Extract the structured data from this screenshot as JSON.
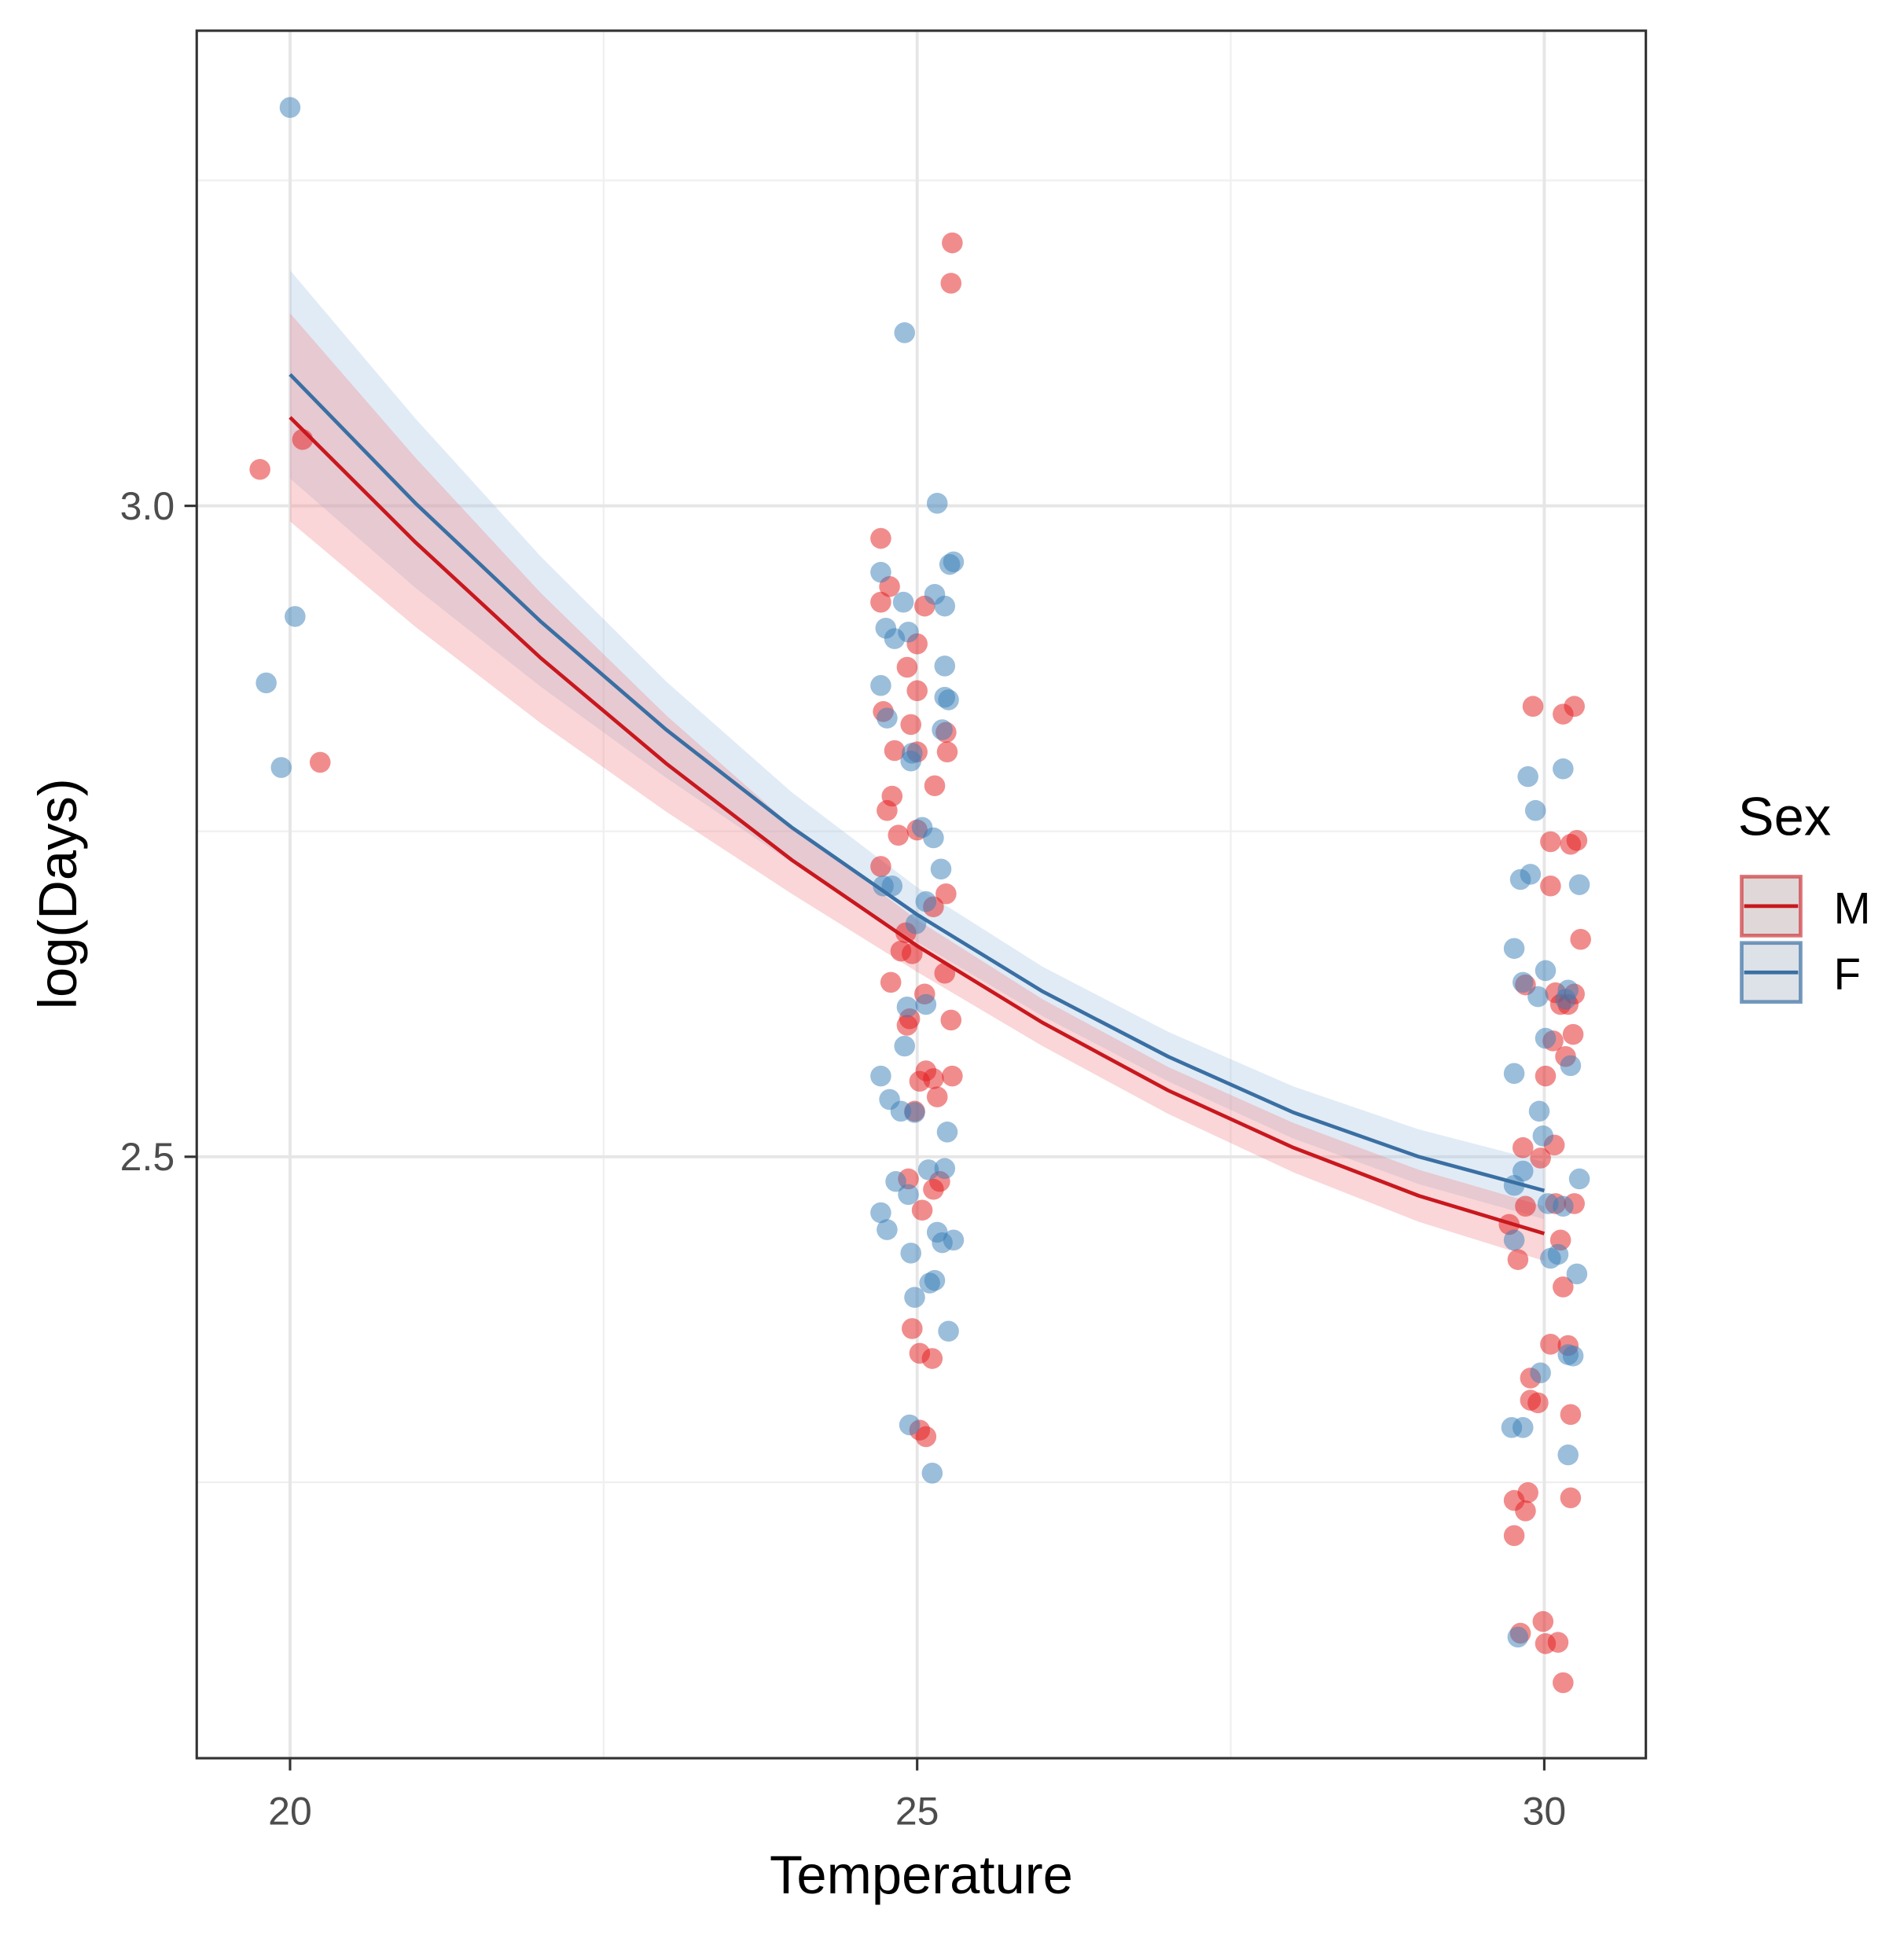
{
  "chart_data": {
    "type": "scatter",
    "title": "",
    "xlabel": "Temperature",
    "ylabel": "log(Days)",
    "xlim": [
      19.256,
      30.81
    ],
    "ylim": [
      2.038,
      3.365
    ],
    "x_ticks": [
      20,
      25,
      30
    ],
    "x_tick_labels": [
      "20",
      "25",
      "30"
    ],
    "y_ticks": [
      2.5,
      3.0
    ],
    "y_tick_labels": [
      "2.5",
      "3.0"
    ],
    "x_minor_grid": [
      22.5,
      27.5
    ],
    "y_minor_grid": [
      2.25,
      2.75,
      3.25
    ],
    "grid": true,
    "legend": {
      "title": "Sex",
      "placement": "right",
      "entries": [
        "M",
        "F"
      ]
    },
    "series": [
      {
        "name": "M",
        "color": "#e41a1c",
        "line_color": "#c8181e",
        "band_color": "#f08a8e",
        "fit": {
          "x": [
            20,
            21,
            22,
            23,
            24,
            25,
            26,
            27,
            28,
            29,
            30
          ],
          "y": [
            3.068,
            2.972,
            2.883,
            2.802,
            2.728,
            2.662,
            2.603,
            2.551,
            2.507,
            2.47,
            2.441
          ],
          "ci_halfwidth": [
            0.08,
            0.065,
            0.05,
            0.037,
            0.026,
            0.02,
            0.018,
            0.018,
            0.019,
            0.02,
            0.021
          ]
        },
        "points": [
          [
            19.76,
            3.028
          ],
          [
            20.1,
            3.051
          ],
          [
            20.24,
            2.803
          ],
          [
            25.28,
            3.202
          ],
          [
            25.27,
            3.171
          ],
          [
            24.71,
            2.975
          ],
          [
            24.71,
            2.926
          ],
          [
            24.78,
            2.938
          ],
          [
            25.06,
            2.923
          ],
          [
            25.0,
            2.894
          ],
          [
            24.92,
            2.876
          ],
          [
            25.0,
            2.858
          ],
          [
            24.95,
            2.832
          ],
          [
            24.73,
            2.842
          ],
          [
            25.0,
            2.811
          ],
          [
            25.23,
            2.826
          ],
          [
            25.24,
            2.811
          ],
          [
            24.82,
            2.812
          ],
          [
            24.8,
            2.777
          ],
          [
            24.76,
            2.766
          ],
          [
            24.85,
            2.747
          ],
          [
            25.0,
            2.751
          ],
          [
            25.14,
            2.785
          ],
          [
            25.23,
            2.702
          ],
          [
            24.71,
            2.723
          ],
          [
            25.13,
            2.692
          ],
          [
            24.91,
            2.672
          ],
          [
            24.87,
            2.658
          ],
          [
            24.96,
            2.656
          ],
          [
            25.22,
            2.641
          ],
          [
            24.79,
            2.634
          ],
          [
            25.06,
            2.625
          ],
          [
            24.94,
            2.606
          ],
          [
            24.92,
            2.601
          ],
          [
            25.27,
            2.605
          ],
          [
            25.07,
            2.566
          ],
          [
            25.13,
            2.56
          ],
          [
            25.28,
            2.562
          ],
          [
            25.02,
            2.558
          ],
          [
            24.98,
            2.535
          ],
          [
            25.16,
            2.546
          ],
          [
            24.93,
            2.483
          ],
          [
            25.18,
            2.481
          ],
          [
            25.13,
            2.475
          ],
          [
            25.04,
            2.459
          ],
          [
            24.96,
            2.368
          ],
          [
            25.02,
            2.349
          ],
          [
            25.12,
            2.345
          ],
          [
            25.02,
            2.29
          ],
          [
            25.07,
            2.285
          ],
          [
            29.91,
            2.846
          ],
          [
            30.15,
            2.84
          ],
          [
            30.24,
            2.846
          ],
          [
            30.05,
            2.742
          ],
          [
            30.21,
            2.74
          ],
          [
            30.26,
            2.743
          ],
          [
            30.05,
            2.708
          ],
          [
            30.29,
            2.667
          ],
          [
            29.85,
            2.632
          ],
          [
            30.09,
            2.626
          ],
          [
            30.13,
            2.617
          ],
          [
            30.19,
            2.617
          ],
          [
            30.24,
            2.625
          ],
          [
            30.07,
            2.589
          ],
          [
            30.23,
            2.594
          ],
          [
            30.01,
            2.562
          ],
          [
            30.17,
            2.577
          ],
          [
            29.83,
            2.507
          ],
          [
            30.08,
            2.509
          ],
          [
            29.97,
            2.499
          ],
          [
            29.85,
            2.462
          ],
          [
            30.09,
            2.464
          ],
          [
            30.24,
            2.464
          ],
          [
            29.72,
            2.448
          ],
          [
            30.13,
            2.436
          ],
          [
            29.79,
            2.421
          ],
          [
            30.15,
            2.4
          ],
          [
            30.05,
            2.356
          ],
          [
            30.19,
            2.355
          ],
          [
            29.89,
            2.33
          ],
          [
            29.89,
            2.313
          ],
          [
            29.95,
            2.311
          ],
          [
            30.21,
            2.302
          ],
          [
            29.87,
            2.242
          ],
          [
            29.76,
            2.236
          ],
          [
            29.85,
            2.228
          ],
          [
            30.21,
            2.238
          ],
          [
            29.76,
            2.209
          ],
          [
            29.81,
            2.134
          ],
          [
            29.99,
            2.143
          ],
          [
            30.01,
            2.126
          ],
          [
            30.11,
            2.127
          ],
          [
            30.15,
            2.096
          ]
        ]
      },
      {
        "name": "F",
        "color": "#377eb8",
        "line_color": "#3a6fa3",
        "band_color": "#a9c6e3",
        "fit": {
          "x": [
            20,
            21,
            22,
            23,
            24,
            25,
            26,
            27,
            28,
            29,
            30
          ],
          "y": [
            3.101,
            3.002,
            2.911,
            2.828,
            2.753,
            2.686,
            2.627,
            2.577,
            2.534,
            2.5,
            2.474
          ],
          "ci_halfwidth": [
            0.08,
            0.065,
            0.05,
            0.037,
            0.027,
            0.021,
            0.019,
            0.019,
            0.02,
            0.021,
            0.022
          ]
        },
        "points": [
          [
            20.0,
            3.306
          ],
          [
            20.04,
            2.915
          ],
          [
            19.81,
            2.864
          ],
          [
            19.93,
            2.799
          ],
          [
            24.9,
            3.133
          ],
          [
            25.16,
            3.002
          ],
          [
            25.26,
            2.955
          ],
          [
            25.29,
            2.957
          ],
          [
            24.71,
            2.949
          ],
          [
            24.89,
            2.926
          ],
          [
            25.22,
            2.923
          ],
          [
            24.75,
            2.906
          ],
          [
            24.93,
            2.903
          ],
          [
            24.82,
            2.898
          ],
          [
            25.14,
            2.932
          ],
          [
            25.22,
            2.877
          ],
          [
            24.71,
            2.862
          ],
          [
            25.22,
            2.853
          ],
          [
            25.25,
            2.851
          ],
          [
            24.76,
            2.837
          ],
          [
            25.2,
            2.828
          ],
          [
            24.95,
            2.804
          ],
          [
            24.96,
            2.81
          ],
          [
            25.04,
            2.753
          ],
          [
            25.13,
            2.745
          ],
          [
            25.19,
            2.721
          ],
          [
            24.73,
            2.708
          ],
          [
            24.8,
            2.708
          ],
          [
            25.07,
            2.696
          ],
          [
            24.99,
            2.679
          ],
          [
            24.92,
            2.615
          ],
          [
            25.07,
            2.617
          ],
          [
            24.9,
            2.585
          ],
          [
            24.71,
            2.562
          ],
          [
            24.78,
            2.544
          ],
          [
            24.87,
            2.535
          ],
          [
            24.98,
            2.534
          ],
          [
            25.24,
            2.519
          ],
          [
            24.83,
            2.481
          ],
          [
            25.09,
            2.49
          ],
          [
            25.22,
            2.491
          ],
          [
            24.93,
            2.471
          ],
          [
            24.71,
            2.457
          ],
          [
            24.76,
            2.444
          ],
          [
            25.16,
            2.442
          ],
          [
            25.2,
            2.434
          ],
          [
            25.29,
            2.436
          ],
          [
            24.95,
            2.426
          ],
          [
            25.1,
            2.403
          ],
          [
            25.14,
            2.405
          ],
          [
            24.98,
            2.392
          ],
          [
            25.25,
            2.366
          ],
          [
            24.94,
            2.294
          ],
          [
            25.12,
            2.257
          ],
          [
            29.87,
            2.792
          ],
          [
            30.15,
            2.798
          ],
          [
            29.93,
            2.766
          ],
          [
            29.81,
            2.713
          ],
          [
            29.89,
            2.717
          ],
          [
            30.28,
            2.709
          ],
          [
            29.76,
            2.66
          ],
          [
            30.01,
            2.643
          ],
          [
            29.83,
            2.634
          ],
          [
            29.95,
            2.623
          ],
          [
            30.19,
            2.628
          ],
          [
            30.17,
            2.621
          ],
          [
            30.01,
            2.591
          ],
          [
            30.21,
            2.57
          ],
          [
            29.76,
            2.564
          ],
          [
            29.96,
            2.535
          ],
          [
            29.99,
            2.516
          ],
          [
            29.76,
            2.478
          ],
          [
            29.83,
            2.489
          ],
          [
            30.03,
            2.464
          ],
          [
            30.15,
            2.462
          ],
          [
            30.28,
            2.483
          ],
          [
            29.76,
            2.436
          ],
          [
            30.05,
            2.422
          ],
          [
            30.11,
            2.425
          ],
          [
            30.26,
            2.41
          ],
          [
            29.97,
            2.334
          ],
          [
            30.19,
            2.348
          ],
          [
            30.23,
            2.347
          ],
          [
            29.74,
            2.292
          ],
          [
            29.83,
            2.292
          ],
          [
            30.19,
            2.271
          ],
          [
            29.79,
            2.131
          ]
        ]
      }
    ]
  }
}
